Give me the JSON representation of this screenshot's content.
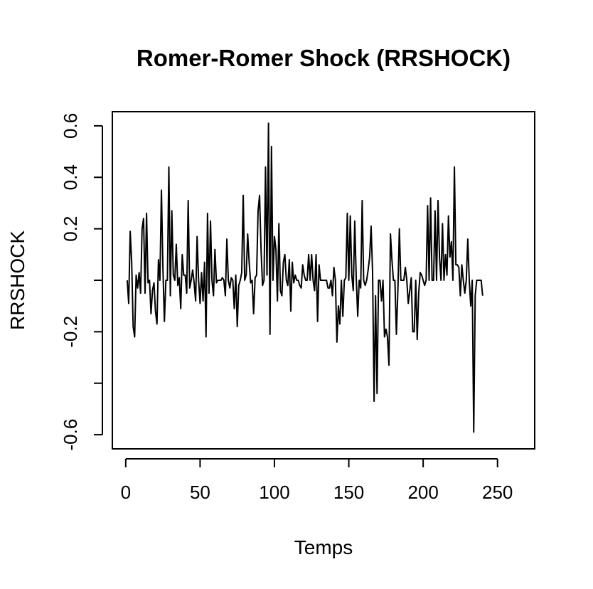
{
  "chart_data": {
    "type": "line",
    "title": "Romer-Romer Shock (RRSHOCK)",
    "xlabel": "Temps",
    "ylabel": "RRSHOCK",
    "xlim": [
      -9,
      275
    ],
    "ylim": [
      -0.655,
      0.655
    ],
    "x_ticks": [
      0,
      50,
      100,
      150,
      200,
      250
    ],
    "y_ticks": [
      0.6,
      0.4,
      0.2,
      0,
      -0.2,
      -0.4,
      -0.6
    ],
    "x_tick_labels": [
      "0",
      "50",
      "100",
      "150",
      "200",
      "250"
    ],
    "y_tick_labels": [
      "0.6",
      "0.4",
      "0.2",
      "",
      "-0.2",
      "",
      "-0.6"
    ],
    "grid": false,
    "line_color": "#000000",
    "series": [
      {
        "x_start": 1,
        "values": [
          0.0,
          -0.09,
          0.19,
          0.07,
          -0.18,
          -0.22,
          0.02,
          -0.03,
          0.03,
          -0.05,
          0.2,
          0.24,
          -0.05,
          0.26,
          -0.01,
          0.0,
          -0.13,
          -0.04,
          -0.01,
          -0.12,
          -0.17,
          0.08,
          0.0,
          0.35,
          0.05,
          -0.16,
          0.0,
          0.0,
          0.44,
          -0.06,
          0.27,
          0.02,
          0.0,
          0.14,
          -0.02,
          0.01,
          -0.11,
          0.1,
          0.02,
          0.02,
          -0.05,
          0.31,
          -0.03,
          0.0,
          0.04,
          -0.01,
          -0.08,
          0.17,
          0.0,
          -0.09,
          0.03,
          -0.08,
          0.07,
          -0.22,
          0.26,
          -0.05,
          0.23,
          0.0,
          -0.06,
          0.12,
          -0.01,
          0.0,
          0.0,
          0.0,
          0.01,
          0.0,
          -0.06,
          0.16,
          0.0,
          -0.03,
          0.01,
          0.0,
          -0.11,
          0.02,
          -0.18,
          -0.02,
          0.0,
          0.03,
          0.33,
          0.0,
          0.02,
          0.18,
          0.07,
          -0.01,
          0.0,
          -0.13,
          0.01,
          0.02,
          0.27,
          0.33,
          0.12,
          -0.02,
          0.0,
          0.44,
          0.02,
          0.61,
          -0.21,
          0.52,
          0.0,
          0.17,
          0.12,
          -0.08,
          0.22,
          -0.04,
          -0.06,
          0.07,
          0.1,
          0.0,
          -0.02,
          0.08,
          -0.12,
          0.07,
          -0.01,
          0.02,
          0.0,
          0.0,
          -0.02,
          -0.03,
          0.06,
          0.02,
          0.0,
          0.0,
          0.1,
          0.0,
          0.1,
          0.0,
          -0.04,
          0.1,
          -0.16,
          0.06,
          0.0,
          0.0,
          0.0,
          0.0,
          0.0,
          -0.03,
          -0.03,
          0.0,
          -0.06,
          0.05,
          0.0,
          -0.24,
          -0.1,
          -0.17,
          0.0,
          -0.14,
          0.0,
          0.01,
          0.26,
          0.0,
          0.25,
          0.02,
          -0.04,
          0.23,
          0.01,
          -0.14,
          0.0,
          -0.03,
          0.31,
          0.0,
          -0.02,
          0.0,
          0.04,
          0.09,
          0.21,
          0.03,
          -0.47,
          -0.06,
          -0.44,
          0.0,
          0.0,
          -0.08,
          0.0,
          -0.22,
          -0.19,
          -0.22,
          -0.33,
          0.18,
          0.08,
          0.0,
          0.0,
          -0.21,
          -0.04,
          0.2,
          0.0,
          0.0,
          0.0,
          0.05,
          0.0,
          -0.09,
          -0.04,
          0.01,
          -0.2,
          -0.2,
          0.0,
          -0.23,
          -0.05,
          0.03,
          0.02,
          0.0,
          -0.02,
          0.0,
          0.29,
          0.0,
          0.32,
          0.0,
          0.0,
          0.27,
          0.0,
          0.31,
          0.09,
          0.0,
          0.22,
          0.0,
          0.1,
          0.02,
          0.25,
          0.09,
          0.15,
          0.0,
          0.44,
          0.06,
          0.06,
          0.05,
          -0.06,
          0.06,
          0.0,
          -0.05,
          0.0,
          0.16,
          0.0,
          -0.1,
          0.0,
          -0.59,
          -0.06,
          0.0,
          0.0,
          0.0,
          0.0,
          -0.06
        ]
      }
    ]
  }
}
